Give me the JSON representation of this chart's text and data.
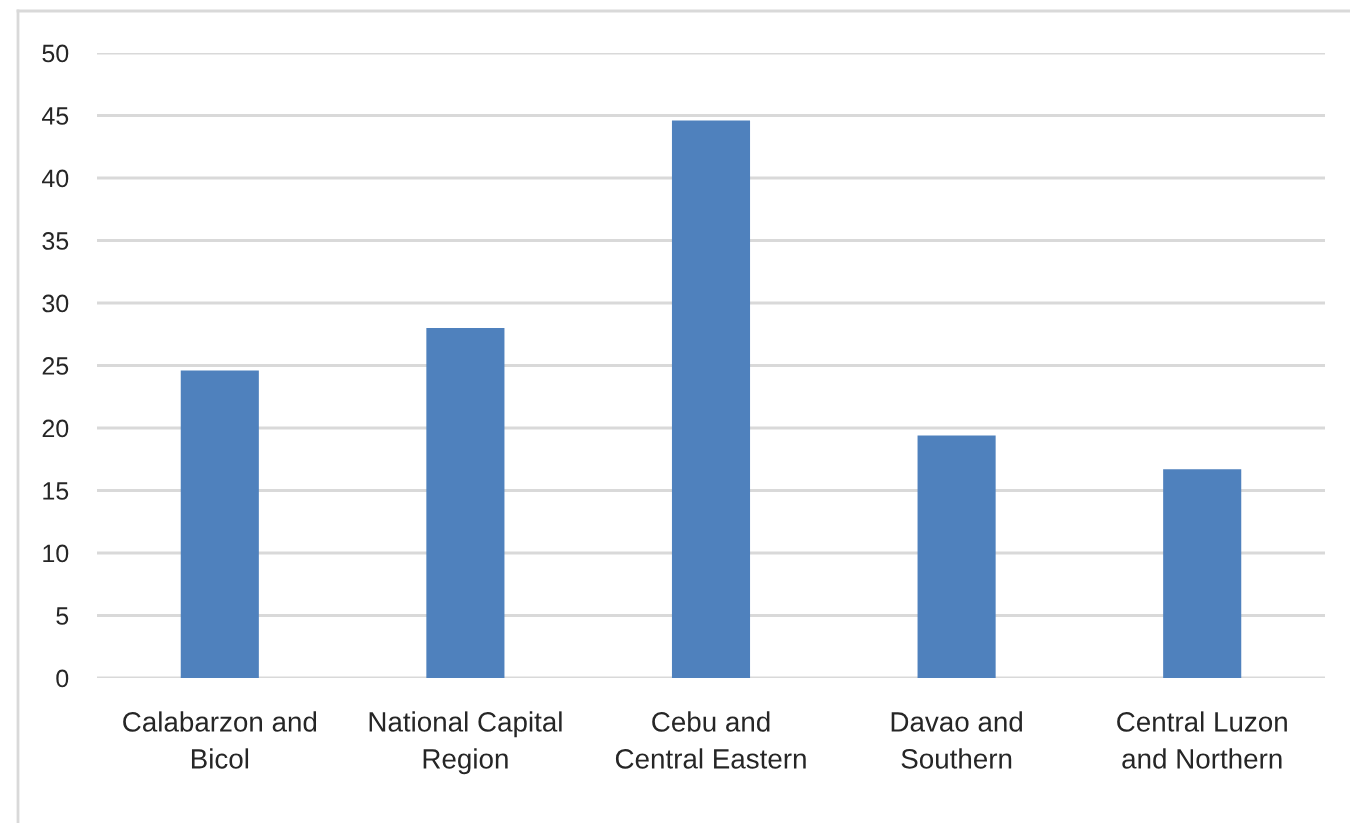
{
  "chart_data": {
    "type": "bar",
    "categories": [
      "Calabarzon and\nBicol",
      "National Capital\nRegion",
      "Cebu and\nCentral Eastern",
      "Davao and\nSouthern",
      "Central Luzon\nand Northern"
    ],
    "values": [
      24.6,
      28.0,
      44.6,
      19.4,
      16.7
    ],
    "color": "#4f81bd",
    "ylim": [
      0,
      50
    ],
    "yticks": [
      0,
      5,
      10,
      15,
      20,
      25,
      30,
      35,
      40,
      45,
      50
    ],
    "grid": "y"
  }
}
